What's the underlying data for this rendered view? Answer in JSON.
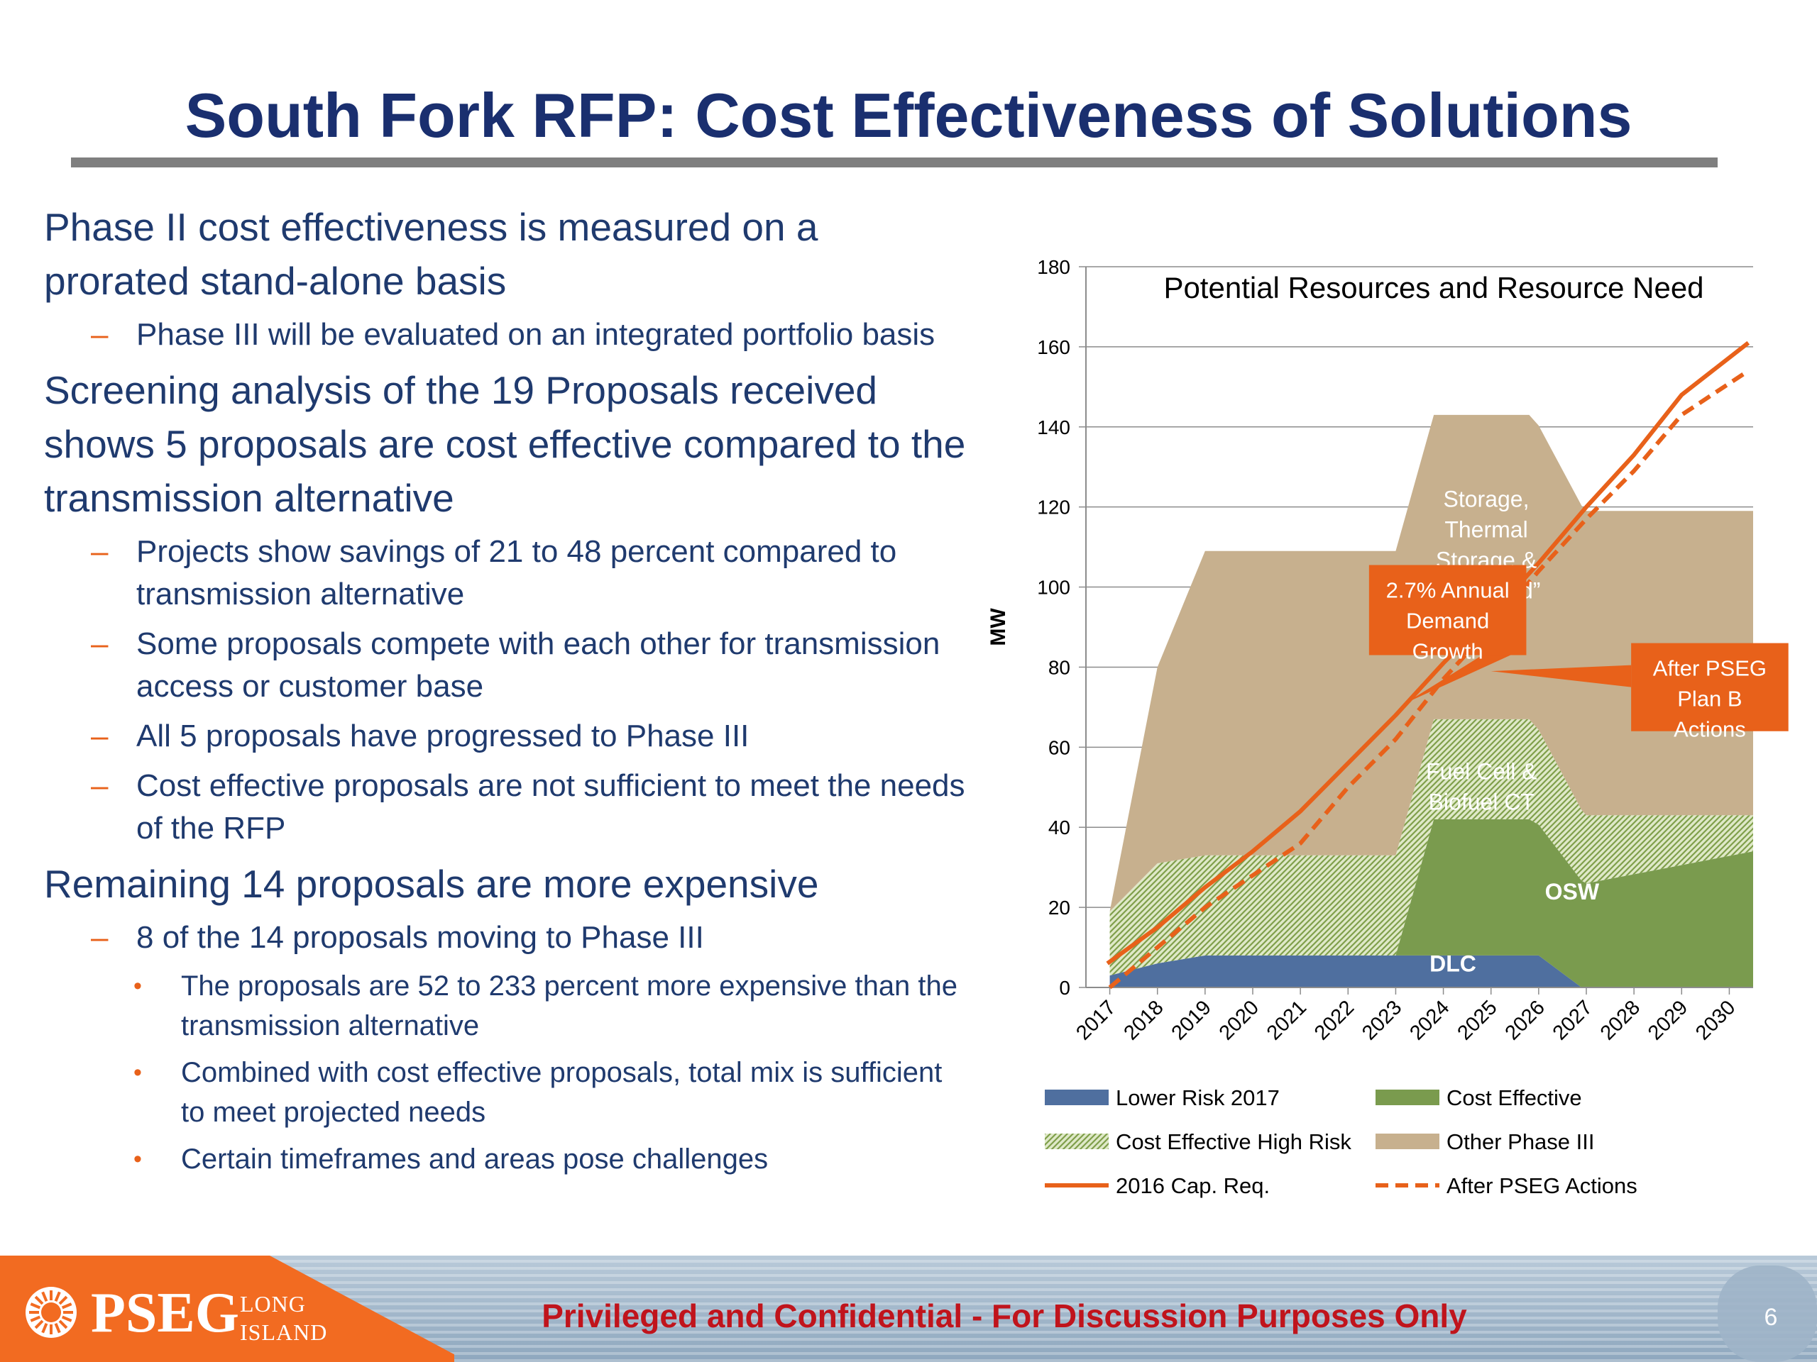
{
  "slide": {
    "title": "South Fork RFP: Cost Effectiveness of Solutions",
    "footer": "Privileged and Confidential - For Discussion Purposes Only",
    "page_number": "6",
    "logo": {
      "word": "PSEG",
      "sub1": "LONG",
      "sub2": "ISLAND",
      "icon": "sun-icon"
    }
  },
  "bullets": [
    {
      "level": 1,
      "text": "Phase II cost effectiveness is measured on a prorated stand-alone basis"
    },
    {
      "level": 2,
      "marker": "–",
      "text": "Phase III will be evaluated on an integrated portfolio basis"
    },
    {
      "level": 1,
      "text": "Screening analysis of the 19 Proposals received shows 5 proposals are cost effective compared to the transmission alternative"
    },
    {
      "level": 2,
      "marker": "–",
      "text": "Projects show savings of 21 to 48 percent compared to transmission alternative"
    },
    {
      "level": 2,
      "marker": "–",
      "text": "Some proposals compete with each other for transmission access or customer base"
    },
    {
      "level": 2,
      "marker": "–",
      "text": "All 5 proposals have progressed to Phase III"
    },
    {
      "level": 2,
      "marker": "–",
      "text": "Cost effective proposals are not sufficient to meet the needs of the RFP"
    },
    {
      "level": 1,
      "text": "Remaining 14 proposals are more expensive"
    },
    {
      "level": 2,
      "marker": "–",
      "text": "8 of the 14 proposals moving to Phase III"
    },
    {
      "level": 3,
      "marker": "•",
      "text": "The proposals are 52 to 233 percent more expensive than the transmission alternative"
    },
    {
      "level": 3,
      "marker": "•",
      "text": "Combined with cost effective proposals, total mix is sufficient to meet projected needs"
    },
    {
      "level": 3,
      "marker": "•",
      "text": "Certain timeframes and areas pose challenges"
    }
  ],
  "colors": {
    "title": "#1a2f6f",
    "text": "#1f3a6e",
    "accent_orange": "#e8611a",
    "lower_risk": "#4f6f9f",
    "cost_effective": "#7a9b4e",
    "high_risk": "#b9cf8e",
    "other_phase_iii": "#c7b08e",
    "footer_red": "#c0141c"
  },
  "chart_data": {
    "type": "area",
    "title": "Potential Resources and Resource Need",
    "ylabel": "MW",
    "xlabel": "",
    "ylim": [
      0,
      180
    ],
    "yticks": [
      "0",
      "20",
      "40",
      "60",
      "80",
      "100",
      "120",
      "140",
      "160",
      "180"
    ],
    "categories": [
      "2017",
      "2018",
      "2019",
      "2020",
      "2021",
      "2022",
      "2023",
      "2024",
      "2025",
      "2026",
      "2027",
      "2028",
      "2029",
      "2030"
    ],
    "grid": true,
    "legend": "bottom",
    "stacked_series": [
      {
        "name": "Lower Risk 2017",
        "x": [
          2017,
          2018,
          2019,
          2020,
          2022,
          2026,
          2026.9,
          2030.5
        ],
        "values": [
          3,
          6,
          8,
          8,
          8,
          8,
          0,
          0
        ]
      },
      {
        "name": "Cost Effective",
        "x": [
          2017,
          2022.3,
          2023,
          2023.8,
          2025.8,
          2027,
          2030.5
        ],
        "values": [
          0,
          0,
          0,
          34,
          34,
          26,
          34
        ]
      },
      {
        "name": "Cost Effective High Risk",
        "x": [
          2017,
          2018,
          2019,
          2020,
          2022.3,
          2023,
          2023.8,
          2025.8,
          2027,
          2030.5
        ],
        "values": [
          16,
          25,
          25,
          25,
          25,
          25,
          25,
          25,
          17,
          9
        ]
      },
      {
        "name": "Other Phase III",
        "x": [
          2017,
          2018,
          2019,
          2020,
          2022,
          2022.3,
          2023,
          2023.8,
          2025.8,
          2027,
          2030.5
        ],
        "values": [
          0,
          49,
          76,
          76,
          76,
          76,
          76,
          76,
          76,
          76,
          76
        ]
      }
    ],
    "line_series": [
      {
        "name": "2016 Cap. Req.",
        "style": "solid",
        "x": [
          2016.95,
          2018,
          2019,
          2020,
          2021,
          2022,
          2023,
          2024,
          2025,
          2026,
          2027,
          2028,
          2029,
          2030.4
        ],
        "values": [
          6,
          15,
          25,
          34,
          44,
          56,
          68,
          81,
          93,
          106,
          120,
          133,
          148,
          161
        ]
      },
      {
        "name": "After PSEG Actions",
        "style": "dashed",
        "x": [
          2017,
          2018,
          2019,
          2020,
          2021,
          2022,
          2023,
          2024,
          2025,
          2026,
          2027,
          2028,
          2029,
          2030.4
        ],
        "values": [
          0,
          10,
          20,
          28,
          36,
          50,
          62,
          77,
          90,
          104,
          117,
          129,
          143,
          154
        ]
      }
    ],
    "annotations": [
      {
        "text": "Storage, Thermal Storage & “Microgrid”",
        "x": 2024.9,
        "y": 120
      },
      {
        "text": "Fuel Cell & Biofuel CT",
        "x": 2024.8,
        "y": 52
      },
      {
        "text": "OSW",
        "x": 2026.7,
        "y": 22
      },
      {
        "text": "DLC",
        "x": 2024.2,
        "y": 4
      }
    ],
    "callouts": [
      {
        "text": "2.7% Annual Demand Growth",
        "x": 2023.6,
        "y": 97,
        "points_to": [
          2023.2,
          71
        ]
      },
      {
        "text": "After PSEG Plan B Actions",
        "x": 2028.6,
        "y": 76,
        "points_to": [
          2025.0,
          79
        ]
      }
    ]
  }
}
